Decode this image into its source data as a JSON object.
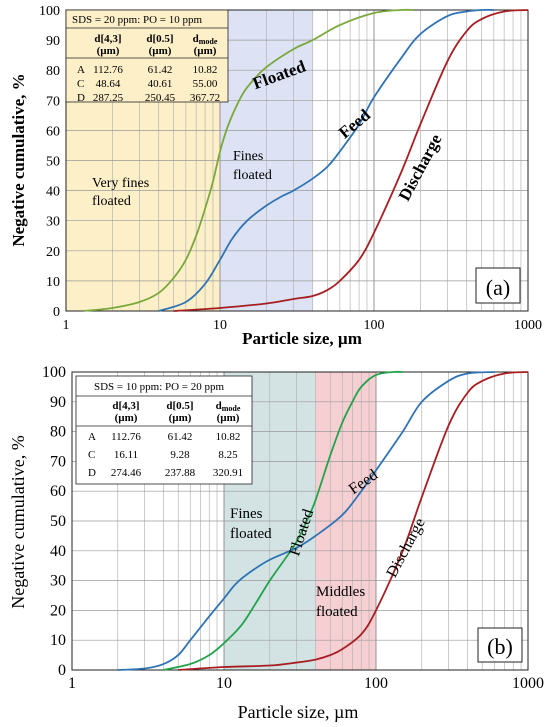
{
  "chart_data": [
    {
      "type": "line",
      "panel_label": "(a)",
      "xscale": "log",
      "xlim": [
        1,
        1000
      ],
      "ylim": [
        0,
        100
      ],
      "xlabel": "Particle size, µm",
      "ylabel": "Negative cumulative, %",
      "x_ticks": [
        "1",
        "10",
        "100",
        "1000"
      ],
      "y_ticks": [
        "0",
        "10",
        "20",
        "30",
        "40",
        "50",
        "60",
        "70",
        "80",
        "90",
        "100"
      ],
      "grid": "log-minor vertical, major horizontal",
      "series": [
        {
          "name": "Floated",
          "color": "#7aa83c",
          "x": [
            1.3,
            2,
            3,
            4,
            5,
            6,
            7,
            8,
            9,
            10,
            11,
            12,
            14,
            16,
            20,
            30,
            40,
            60,
            100,
            150,
            180
          ],
          "y": [
            0,
            1,
            3,
            6,
            11,
            17,
            25,
            34,
            43,
            53,
            60,
            65,
            72,
            76,
            81,
            87,
            90,
            95,
            99,
            100,
            100
          ]
        },
        {
          "name": "Feed",
          "color": "#2f73b5",
          "x": [
            4,
            6,
            8,
            10,
            12,
            15,
            20,
            25,
            30,
            40,
            50,
            60,
            80,
            100,
            150,
            200,
            300,
            400,
            500,
            600
          ],
          "y": [
            0,
            3,
            9,
            17,
            24,
            30,
            35,
            38,
            40,
            44,
            48,
            53,
            62,
            71,
            84,
            92,
            98,
            99.5,
            100,
            100
          ]
        },
        {
          "name": "Discharge",
          "color": "#a61e22",
          "x": [
            5,
            10,
            20,
            30,
            40,
            50,
            60,
            80,
            100,
            150,
            200,
            300,
            400,
            500,
            700,
            1000
          ],
          "y": [
            0,
            1,
            2.5,
            4,
            5,
            7,
            10,
            17,
            26,
            46,
            62,
            83,
            93,
            97,
            99.5,
            100
          ]
        }
      ],
      "bands": [
        {
          "label": "Very fines floated",
          "from": 1,
          "to": 10,
          "color": "#fdf0c8"
        },
        {
          "label": "Fines floated",
          "from": 10,
          "to": 40,
          "color": "#dde3f5"
        }
      ],
      "table": {
        "title": "SDS = 20 ppm: PO = 10 ppm",
        "headers": [
          "",
          "d[4,3] (µm)",
          "d[0.5] (µm)",
          "dmode (µm)"
        ],
        "rows": [
          [
            "A",
            "112.76",
            "61.42",
            "10.82"
          ],
          [
            "C",
            "48.64",
            "40.61",
            "55.00"
          ],
          [
            "D",
            "287.25",
            "250.45",
            "367.72"
          ]
        ]
      }
    },
    {
      "type": "line",
      "panel_label": "(b)",
      "xscale": "log",
      "xlim": [
        1,
        1000
      ],
      "ylim": [
        0,
        100
      ],
      "xlabel": "Particle size, µm",
      "ylabel": "Negative cumulative, %",
      "x_ticks": [
        "1",
        "10",
        "100",
        "1000"
      ],
      "y_ticks": [
        "0",
        "10",
        "20",
        "30",
        "40",
        "50",
        "60",
        "70",
        "80",
        "90",
        "100"
      ],
      "series": [
        {
          "name": "Floated",
          "color": "#22a34a",
          "x": [
            4,
            6,
            8,
            10,
            13,
            16,
            20,
            25,
            30,
            35,
            40,
            50,
            60,
            70,
            80,
            100,
            130,
            150
          ],
          "y": [
            0,
            2,
            5,
            9,
            15,
            22,
            30,
            37,
            43,
            50,
            57,
            72,
            83,
            90,
            95,
            99,
            100,
            100
          ]
        },
        {
          "name": "Feed",
          "color": "#2f73b5",
          "x": [
            2,
            3,
            4,
            5,
            6,
            8,
            10,
            12,
            15,
            20,
            30,
            40,
            60,
            80,
            100,
            150,
            200,
            300,
            400,
            600
          ],
          "y": [
            0,
            0.5,
            2,
            5,
            10,
            18,
            24,
            29,
            33,
            37,
            41,
            45,
            52,
            60,
            67,
            80,
            90,
            97,
            99.5,
            100
          ]
        },
        {
          "name": "Discharge",
          "color": "#a61e22",
          "x": [
            5,
            10,
            20,
            30,
            40,
            50,
            60,
            80,
            100,
            150,
            200,
            300,
            400,
            500,
            700,
            1000
          ],
          "y": [
            0,
            1,
            1.5,
            2.5,
            3.5,
            5,
            7,
            12,
            20,
            40,
            58,
            82,
            93,
            97,
            99.5,
            100
          ]
        }
      ],
      "bands": [
        {
          "label": "Fines floated",
          "from": 10,
          "to": 40,
          "color": "#d3e3e3"
        },
        {
          "label": "Middles floated",
          "from": 40,
          "to": 100,
          "color": "#f6cfd3"
        }
      ],
      "table": {
        "title": "SDS = 10 ppm: PO = 20 ppm",
        "headers": [
          "",
          "d[4,3] (µm)",
          "d[0.5] (µm)",
          "dmode (µm)"
        ],
        "rows": [
          [
            "A",
            "112.76",
            "61.42",
            "10.82"
          ],
          [
            "C",
            "16.11",
            "9.28",
            "8.25"
          ],
          [
            "D",
            "274.46",
            "237.88",
            "320.91"
          ]
        ]
      }
    }
  ]
}
